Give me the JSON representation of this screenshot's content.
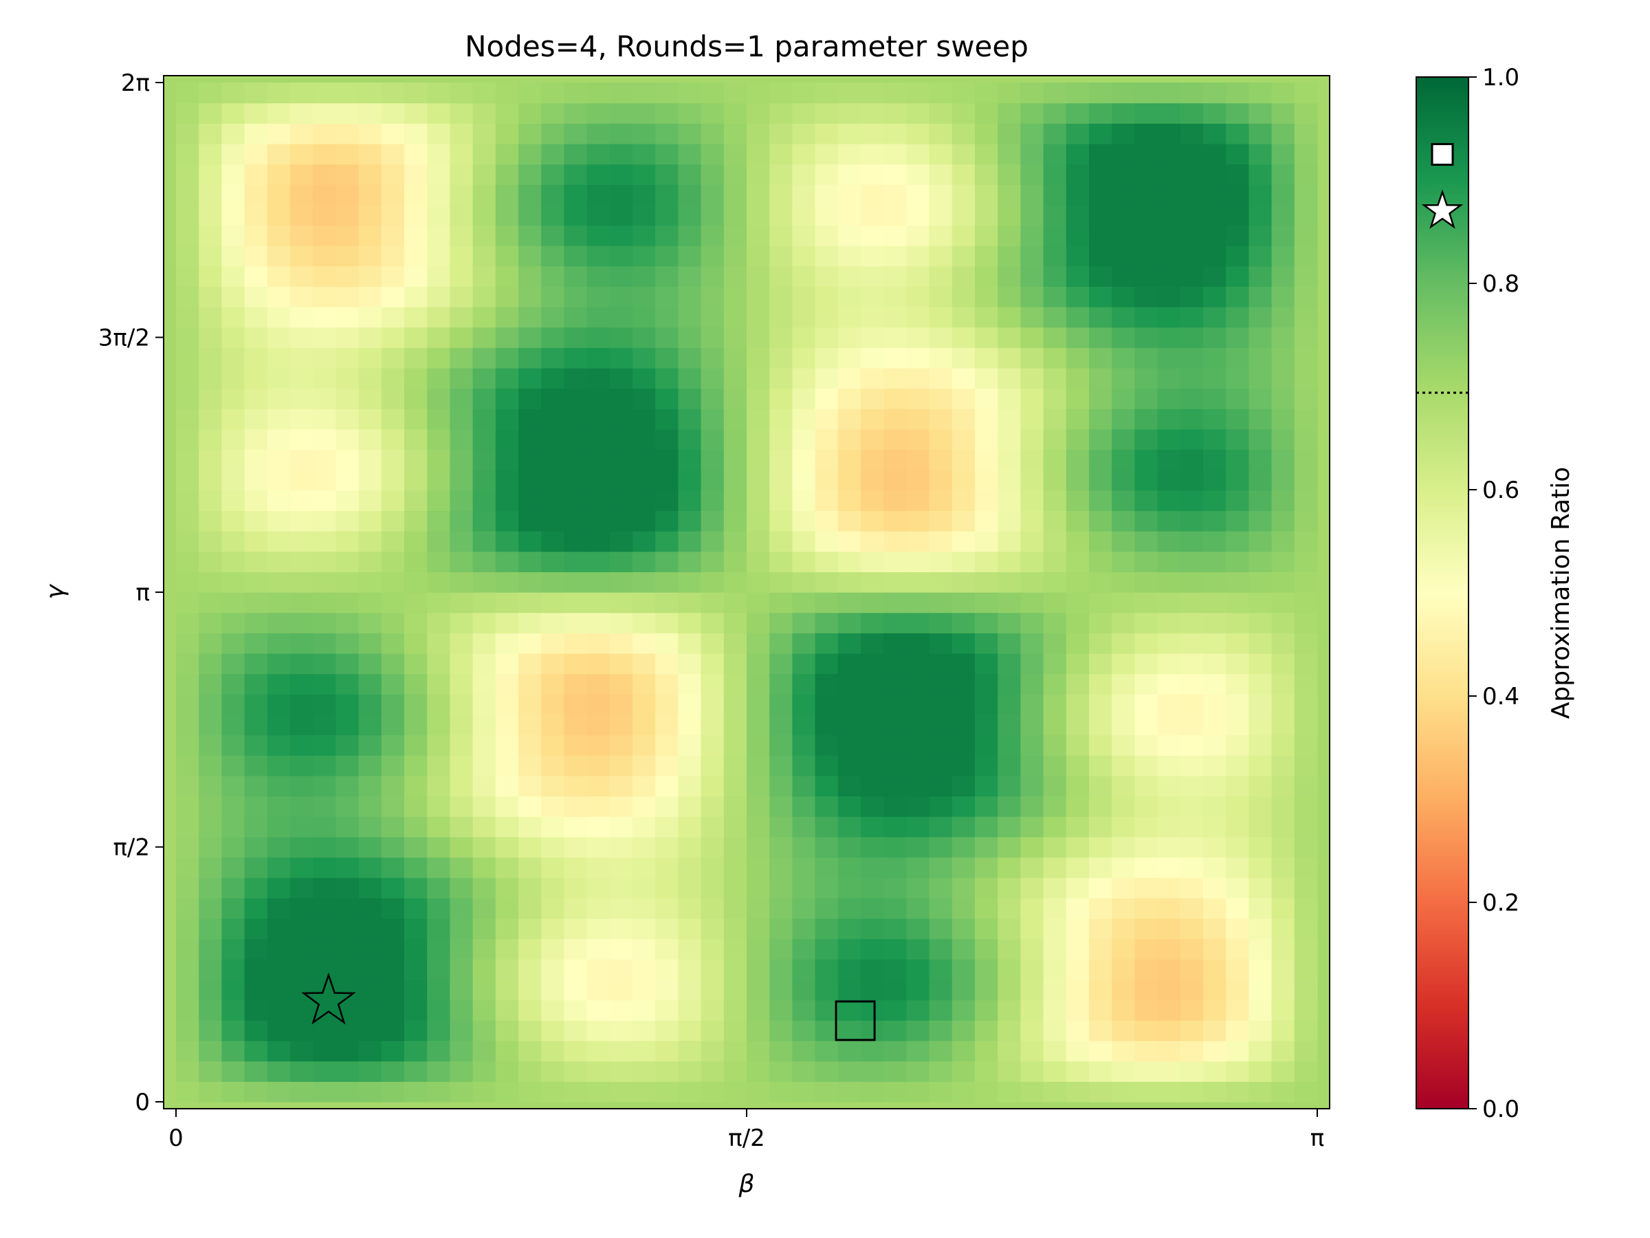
{
  "chart_data": {
    "type": "heatmap",
    "title": "Nodes=4, Rounds=1 parameter sweep",
    "xlabel": "β",
    "ylabel": "γ",
    "xlim": [
      0,
      3.14159
    ],
    "ylim": [
      0,
      6.28318
    ],
    "x_ticks": [
      {
        "value": 0,
        "label": "0"
      },
      {
        "value": 1.5708,
        "label": "π/2"
      },
      {
        "value": 3.14159,
        "label": "π"
      }
    ],
    "y_ticks": [
      {
        "value": 0,
        "label": "0"
      },
      {
        "value": 1.5708,
        "label": "π/2"
      },
      {
        "value": 3.14159,
        "label": "π"
      },
      {
        "value": 4.71239,
        "label": "3π/2"
      },
      {
        "value": 6.28318,
        "label": "2π"
      }
    ],
    "grid": false,
    "colormap": "RdYlGn",
    "colorbar": {
      "label": "Approximation Ratio",
      "range": [
        0,
        1
      ],
      "ticks": [
        {
          "value": 0.0,
          "label": "0.0"
        },
        {
          "value": 0.2,
          "label": "0.2"
        },
        {
          "value": 0.4,
          "label": "0.4"
        },
        {
          "value": 0.6,
          "label": "0.6"
        },
        {
          "value": 0.8,
          "label": "0.8"
        },
        {
          "value": 1.0,
          "label": "1.0"
        }
      ],
      "reference_line": 0.694,
      "markers": [
        {
          "shape": "square",
          "value": 0.925
        },
        {
          "shape": "star",
          "value": 0.87
        }
      ]
    },
    "grid_size": [
      50,
      50
    ],
    "value_range": [
      0.22,
      0.95
    ],
    "baseline_value": 0.7,
    "notable_points": [
      {
        "shape": "star",
        "beta": 0.42,
        "gamma": 0.62,
        "value": 0.87
      },
      {
        "shape": "square",
        "beta": 1.87,
        "gamma": 0.5,
        "value": 0.925
      }
    ]
  }
}
